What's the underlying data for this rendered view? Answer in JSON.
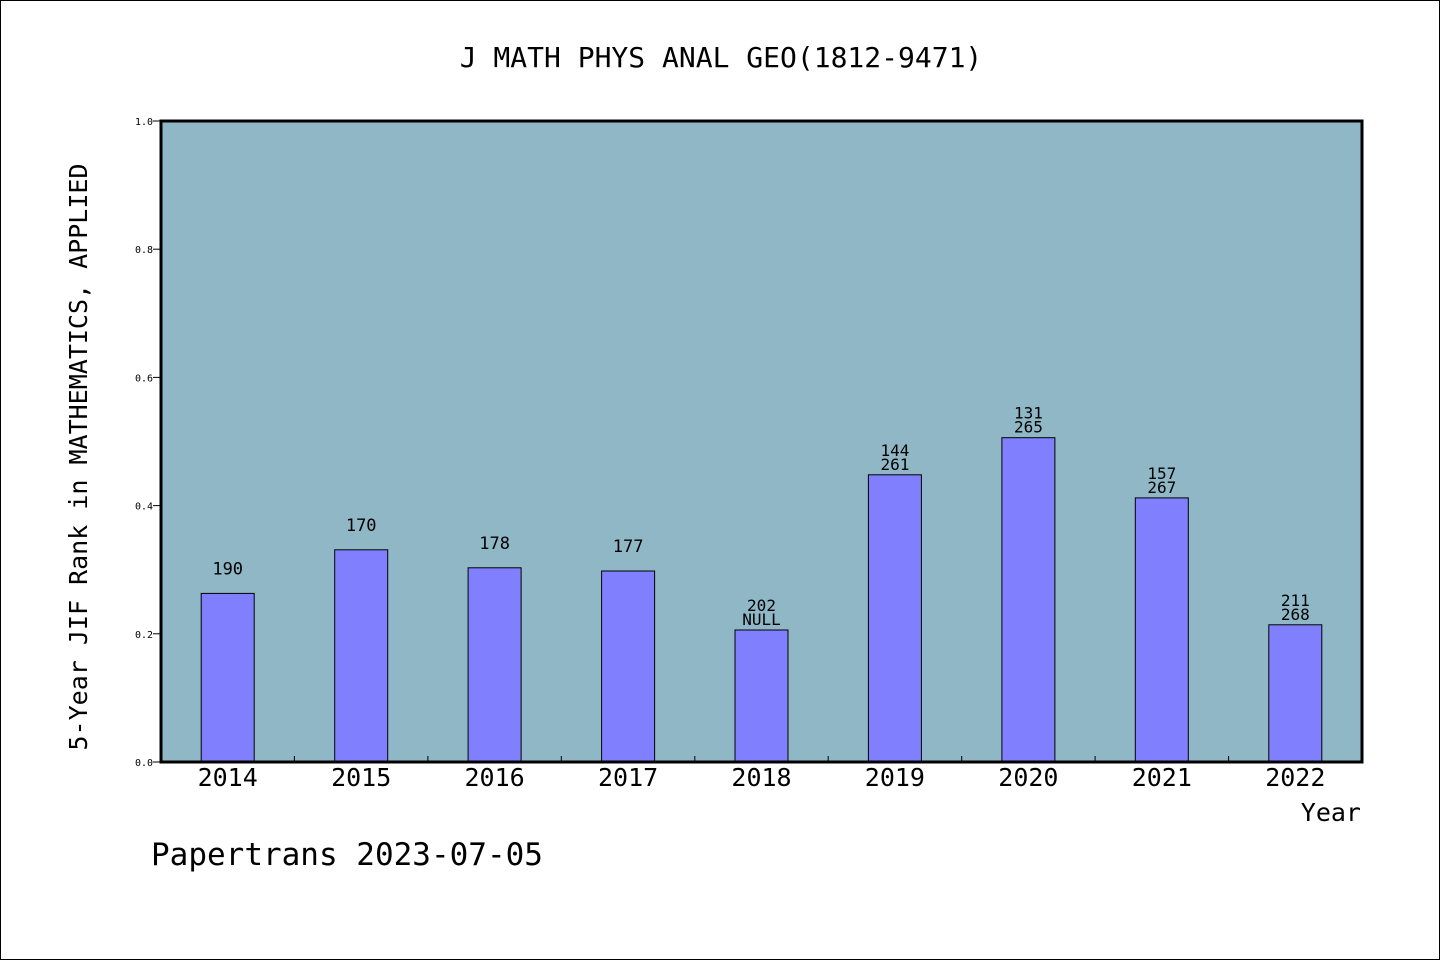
{
  "chart_data": {
    "type": "bar",
    "title": "J MATH PHYS ANAL GEO(1812-9471)",
    "xlabel": "Year",
    "ylabel": "5-Year JIF Rank in MATHEMATICS, APPLIED",
    "categories": [
      "2014",
      "2015",
      "2016",
      "2017",
      "2018",
      "2019",
      "2020",
      "2021",
      "2022"
    ],
    "values": [
      0.263,
      0.331,
      0.303,
      0.298,
      0.206,
      0.448,
      0.506,
      0.412,
      0.214
    ],
    "bar_labels": [
      [
        "190"
      ],
      [
        "170"
      ],
      [
        "178"
      ],
      [
        "177"
      ],
      [
        "202",
        "NULL"
      ],
      [
        "144",
        "261"
      ],
      [
        "131",
        "265"
      ],
      [
        "157",
        "267"
      ],
      [
        "211",
        "268"
      ]
    ],
    "ylim": [
      0,
      1.0
    ],
    "yticks": [
      "0.0",
      "0.2",
      "0.4",
      "0.6",
      "0.8",
      "1.0"
    ],
    "grid": false,
    "colors": {
      "bar": "#8080ff",
      "plot_background": "#8fb7c6",
      "frame": "#000000"
    }
  },
  "footer": {
    "note": "Papertrans 2023-07-05"
  }
}
